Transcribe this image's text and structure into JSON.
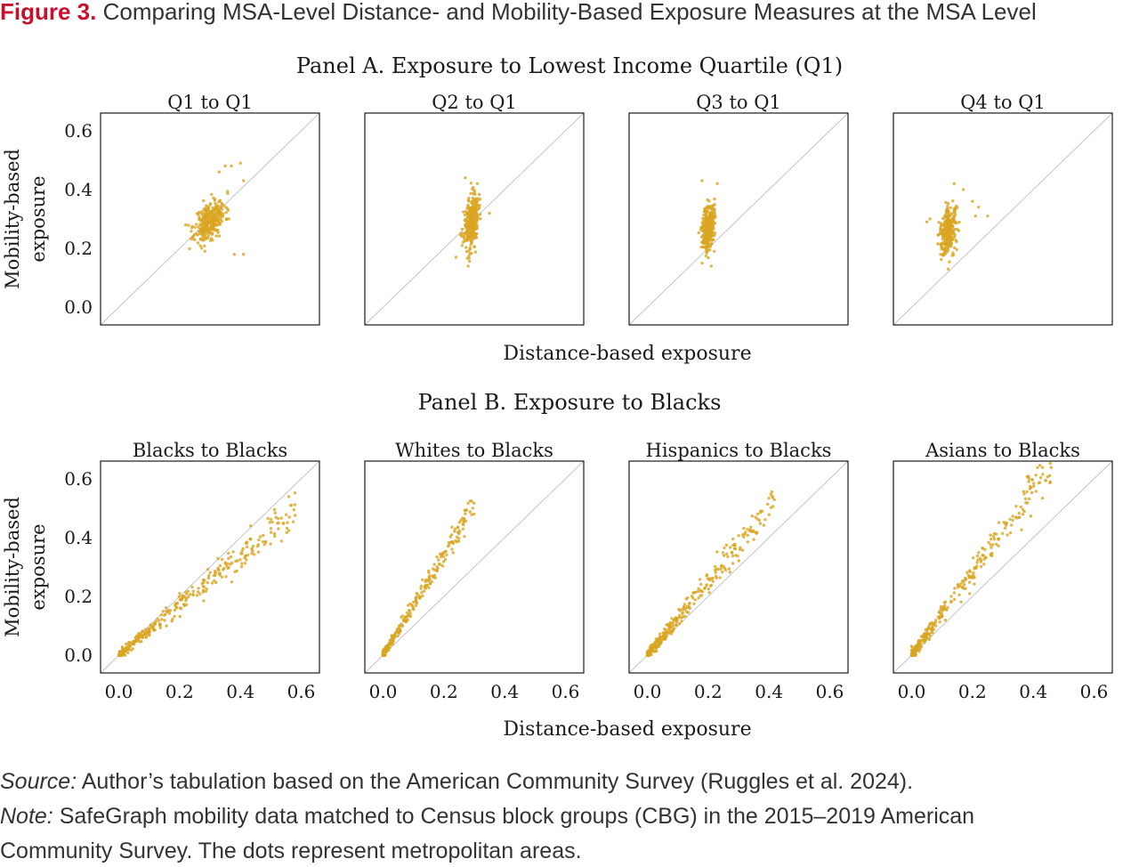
{
  "figure": {
    "label": "Figure 3.",
    "title": " Comparing MSA-Level Distance- and Mobility-Based Exposure Measures at the MSA Level"
  },
  "colors": {
    "points": "#d9a520",
    "diagonal": "#c4c4c4",
    "frame": "#1a1a1a"
  },
  "panelA": {
    "title": "Panel A. Exposure to Lowest Income Quartile (Q1)"
  },
  "panelB": {
    "title": "Panel B. Exposure to Blacks"
  },
  "axes": {
    "xlabel": "Distance-based exposure",
    "ylabel_line1": "Mobility-based",
    "ylabel_line2": "exposure",
    "ticks": [
      "0.0",
      "0.2",
      "0.4",
      "0.6"
    ]
  },
  "chart_data": [
    {
      "type": "scatter",
      "panel": "A",
      "title": "Q1 to Q1",
      "xlim": [
        -0.06,
        0.66
      ],
      "ylim": [
        -0.06,
        0.66
      ],
      "diagonal": true,
      "clusters": [
        {
          "cx": 0.3,
          "cy": 0.295,
          "sx": 0.025,
          "sy": 0.035,
          "rho": 0.45,
          "n": 300,
          "seed": 11
        }
      ],
      "extra": [
        [
          0.38,
          0.18
        ],
        [
          0.4,
          0.49
        ],
        [
          0.37,
          0.48
        ],
        [
          0.41,
          0.43
        ],
        [
          0.35,
          0.48
        ],
        [
          0.22,
          0.28
        ],
        [
          0.24,
          0.27
        ],
        [
          0.41,
          0.18
        ],
        [
          0.33,
          0.46
        ]
      ]
    },
    {
      "type": "scatter",
      "panel": "A",
      "title": "Q2 to Q1",
      "xlim": [
        -0.06,
        0.66
      ],
      "ylim": [
        -0.06,
        0.66
      ],
      "diagonal": true,
      "clusters": [
        {
          "cx": 0.29,
          "cy": 0.29,
          "sx": 0.012,
          "sy": 0.045,
          "rho": 0.3,
          "n": 300,
          "seed": 23
        }
      ],
      "extra": [
        [
          0.27,
          0.44
        ],
        [
          0.31,
          0.42
        ],
        [
          0.35,
          0.32
        ],
        [
          0.28,
          0.14
        ],
        [
          0.24,
          0.17
        ],
        [
          0.26,
          0.21
        ]
      ]
    },
    {
      "type": "scatter",
      "panel": "A",
      "title": "Q3 to Q1",
      "xlim": [
        -0.06,
        0.66
      ],
      "ylim": [
        -0.06,
        0.66
      ],
      "diagonal": true,
      "clusters": [
        {
          "cx": 0.2,
          "cy": 0.275,
          "sx": 0.01,
          "sy": 0.04,
          "rho": 0.3,
          "n": 300,
          "seed": 37
        }
      ],
      "extra": [
        [
          0.18,
          0.43
        ],
        [
          0.23,
          0.42
        ],
        [
          0.21,
          0.14
        ],
        [
          0.18,
          0.15
        ],
        [
          0.22,
          0.19
        ]
      ]
    },
    {
      "type": "scatter",
      "panel": "A",
      "title": "Q4 to Q1",
      "xlim": [
        -0.06,
        0.66
      ],
      "ylim": [
        -0.06,
        0.66
      ],
      "diagonal": true,
      "clusters": [
        {
          "cx": 0.12,
          "cy": 0.26,
          "sx": 0.014,
          "sy": 0.04,
          "rho": 0.3,
          "n": 280,
          "seed": 41
        }
      ],
      "extra": [
        [
          0.25,
          0.31
        ],
        [
          0.22,
          0.34
        ],
        [
          0.2,
          0.36
        ],
        [
          0.17,
          0.4
        ],
        [
          0.14,
          0.42
        ],
        [
          0.12,
          0.13
        ],
        [
          0.06,
          0.3
        ],
        [
          0.05,
          0.29
        ],
        [
          0.21,
          0.31
        ]
      ]
    },
    {
      "type": "scatter",
      "panel": "B",
      "title": "Blacks to Blacks",
      "xlim": [
        -0.06,
        0.66
      ],
      "ylim": [
        -0.06,
        0.66
      ],
      "diagonal": true,
      "line": {
        "xmin": 0.0,
        "xmax": 0.58,
        "a": 0.0,
        "b": 0.85,
        "spread": 0.02,
        "n": 320,
        "skew": 1.6,
        "seed": 53
      }
    },
    {
      "type": "scatter",
      "panel": "B",
      "title": "Whites to Blacks",
      "xlim": [
        -0.06,
        0.66
      ],
      "ylim": [
        -0.06,
        0.66
      ],
      "diagonal": true,
      "line": {
        "xmin": 0.0,
        "xmax": 0.3,
        "a": 0.0,
        "b": 1.7,
        "spread": 0.015,
        "n": 320,
        "skew": 2.6,
        "seed": 67
      }
    },
    {
      "type": "scatter",
      "panel": "B",
      "title": "Hispanics to Blacks",
      "xlim": [
        -0.06,
        0.66
      ],
      "ylim": [
        -0.06,
        0.66
      ],
      "diagonal": true,
      "line": {
        "xmin": 0.0,
        "xmax": 0.42,
        "a": 0.0,
        "b": 1.25,
        "spread": 0.02,
        "n": 320,
        "skew": 2.1,
        "seed": 79
      }
    },
    {
      "type": "scatter",
      "panel": "B",
      "title": "Asians to Blacks",
      "xlim": [
        -0.06,
        0.66
      ],
      "ylim": [
        -0.06,
        0.66
      ],
      "diagonal": true,
      "line": {
        "xmin": 0.0,
        "xmax": 0.46,
        "a": 0.0,
        "b": 1.4,
        "spread": 0.025,
        "n": 320,
        "skew": 2.2,
        "seed": 97
      }
    }
  ],
  "footer": {
    "source_label": "Source:",
    "source_text": " Author’s tabulation based on the American Community Survey (Ruggles et al. 2024).",
    "note_label": "Note:",
    "note_text": " SafeGraph mobility data matched to Census block groups (CBG) in the 2015–2019 American",
    "note_line2": "Community Survey. The dots represent metropolitan areas."
  }
}
